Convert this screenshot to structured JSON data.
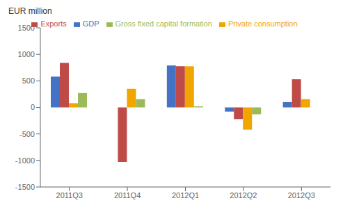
{
  "chart_data": {
    "type": "bar",
    "ylabel": "EUR million",
    "categories": [
      "2011Q3",
      "2011Q4",
      "2012Q1",
      "2012Q2",
      "2012Q3"
    ],
    "series": [
      {
        "name": "GDP",
        "color": "#4472C4",
        "values": [
          580,
          0,
          790,
          -80,
          100
        ]
      },
      {
        "name": "Exports",
        "color": "#BE4B48",
        "values": [
          840,
          -1030,
          775,
          -220,
          530
        ]
      },
      {
        "name": "Private consumption",
        "color": "#F0A500",
        "values": [
          80,
          350,
          775,
          -420,
          155
        ]
      },
      {
        "name": "Gross fixed capital formation",
        "color": "#9BBB59",
        "values": [
          270,
          155,
          20,
          -130,
          0
        ]
      }
    ],
    "ylim": [
      -1500,
      1500
    ],
    "yticks": [
      -1500,
      -1000,
      -500,
      0,
      500,
      1000,
      1500
    ],
    "grid": false,
    "legend": "top"
  }
}
